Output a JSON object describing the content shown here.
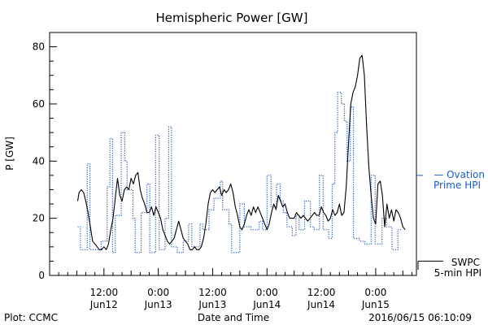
{
  "chart_data": {
    "type": "line",
    "title": "Hemispheric Power [GW]",
    "ylabel": "P [GW]",
    "xlabel": "Date and Time",
    "ylim": [
      0,
      85
    ],
    "yticks": [
      0,
      20,
      40,
      60,
      80
    ],
    "xlim": [
      0,
      81
    ],
    "x_unit": "hours since 2016-06-11 00:00 UT",
    "xticks": [
      {
        "x": 12,
        "top": "12:00",
        "bottom": "Jun12"
      },
      {
        "x": 24,
        "top": "0:00",
        "bottom": "Jun13"
      },
      {
        "x": 36,
        "top": "12:00",
        "bottom": "Jun13"
      },
      {
        "x": 48,
        "top": "0:00",
        "bottom": "Jun14"
      },
      {
        "x": 60,
        "top": "12:00",
        "bottom": "Jun14"
      },
      {
        "x": 72,
        "top": "0:00",
        "bottom": "Jun15"
      }
    ],
    "grid": false,
    "legend_position": "right",
    "footer_left": "Plot: CCMC",
    "footer_right": "2016/06/15 06:10:09",
    "series": [
      {
        "name": "SWPC 5-min HPI",
        "legend_lines": [
          "SWPC",
          "5-min HPI"
        ],
        "color": "#000000",
        "style": "solid",
        "points": [
          [
            6.2,
            26
          ],
          [
            6.5,
            29
          ],
          [
            7,
            30
          ],
          [
            7.5,
            29
          ],
          [
            8,
            26
          ],
          [
            8.5,
            22
          ],
          [
            9,
            17
          ],
          [
            9.5,
            12
          ],
          [
            10,
            11
          ],
          [
            10.5,
            10
          ],
          [
            11,
            9
          ],
          [
            11.5,
            9
          ],
          [
            12,
            10
          ],
          [
            12.5,
            9
          ],
          [
            13,
            11
          ],
          [
            13.5,
            16
          ],
          [
            14,
            20
          ],
          [
            14.5,
            27
          ],
          [
            15,
            34
          ],
          [
            15.5,
            28
          ],
          [
            16,
            26
          ],
          [
            16.5,
            30
          ],
          [
            17,
            31
          ],
          [
            17.5,
            30
          ],
          [
            18,
            34
          ],
          [
            18.5,
            32
          ],
          [
            19,
            35
          ],
          [
            19.5,
            36
          ],
          [
            20,
            30
          ],
          [
            20.5,
            27
          ],
          [
            21,
            25
          ],
          [
            21.5,
            22
          ],
          [
            22,
            22
          ],
          [
            22.5,
            24
          ],
          [
            23,
            21
          ],
          [
            23.5,
            24
          ],
          [
            24,
            22
          ],
          [
            24.5,
            20
          ],
          [
            25,
            16
          ],
          [
            25.5,
            14
          ],
          [
            26,
            12
          ],
          [
            26.5,
            11
          ],
          [
            27,
            12
          ],
          [
            27.5,
            13
          ],
          [
            28,
            16
          ],
          [
            28.5,
            19
          ],
          [
            29,
            16
          ],
          [
            29.5,
            13
          ],
          [
            30,
            12
          ],
          [
            30.5,
            11
          ],
          [
            31,
            9
          ],
          [
            31.5,
            9
          ],
          [
            32,
            10
          ],
          [
            32.5,
            9
          ],
          [
            33,
            9
          ],
          [
            33.5,
            10
          ],
          [
            34,
            13
          ],
          [
            34.5,
            18
          ],
          [
            35,
            25
          ],
          [
            35.5,
            29
          ],
          [
            36,
            30
          ],
          [
            36.5,
            29
          ],
          [
            37,
            30
          ],
          [
            37.5,
            31
          ],
          [
            38,
            28
          ],
          [
            38.5,
            30
          ],
          [
            39,
            29
          ],
          [
            39.5,
            30
          ],
          [
            40,
            32
          ],
          [
            40.5,
            29
          ],
          [
            41,
            24
          ],
          [
            41.5,
            21
          ],
          [
            42,
            17
          ],
          [
            42.5,
            16
          ],
          [
            43,
            18
          ],
          [
            43.5,
            21
          ],
          [
            44,
            23
          ],
          [
            44.5,
            21
          ],
          [
            45,
            24
          ],
          [
            45.5,
            22
          ],
          [
            46,
            24
          ],
          [
            46.5,
            22
          ],
          [
            47,
            20
          ],
          [
            47.5,
            18
          ],
          [
            48,
            16
          ],
          [
            48.5,
            18
          ],
          [
            49,
            22
          ],
          [
            49.5,
            25
          ],
          [
            50,
            23
          ],
          [
            50.5,
            28
          ],
          [
            51,
            26
          ],
          [
            51.5,
            24
          ],
          [
            52,
            25
          ],
          [
            52.5,
            22
          ],
          [
            53,
            20
          ],
          [
            53.5,
            20
          ],
          [
            54,
            20
          ],
          [
            54.5,
            22
          ],
          [
            55,
            21
          ],
          [
            55.5,
            20
          ],
          [
            56,
            21
          ],
          [
            56.5,
            20
          ],
          [
            57,
            19
          ],
          [
            57.5,
            20
          ],
          [
            58,
            21
          ],
          [
            58.5,
            22
          ],
          [
            59,
            21
          ],
          [
            59.5,
            21
          ],
          [
            60,
            24
          ],
          [
            60.5,
            22
          ],
          [
            61,
            21
          ],
          [
            61.5,
            19
          ],
          [
            62,
            20
          ],
          [
            62.5,
            23
          ],
          [
            63,
            21
          ],
          [
            63.5,
            22
          ],
          [
            64,
            25
          ],
          [
            64.5,
            21
          ],
          [
            65,
            22
          ],
          [
            65.5,
            31
          ],
          [
            66,
            46
          ],
          [
            66.5,
            60
          ],
          [
            67,
            64
          ],
          [
            67.5,
            66
          ],
          [
            68,
            70
          ],
          [
            68.5,
            76
          ],
          [
            69,
            77
          ],
          [
            69.5,
            70
          ],
          [
            70,
            52
          ],
          [
            70.5,
            38
          ],
          [
            71,
            28
          ],
          [
            71.5,
            20
          ],
          [
            72,
            18
          ],
          [
            72.5,
            32
          ],
          [
            73,
            33
          ],
          [
            73.5,
            28
          ],
          [
            74,
            17
          ],
          [
            74.5,
            25
          ],
          [
            75,
            20
          ],
          [
            75.5,
            23
          ],
          [
            76,
            19
          ],
          [
            76.5,
            23
          ],
          [
            77,
            22
          ],
          [
            77.5,
            20
          ],
          [
            78,
            17
          ],
          [
            78.5,
            16
          ]
        ]
      },
      {
        "name": "Ovation Prime HPI",
        "legend_lines": [
          "— Ovation",
          "Prime HPI"
        ],
        "color": "#1e5ac8",
        "style": "dotted",
        "points": [
          [
            6.2,
            17
          ],
          [
            6.8,
            17
          ],
          [
            6.8,
            9
          ],
          [
            8.3,
            9
          ],
          [
            8.3,
            39
          ],
          [
            8.9,
            39
          ],
          [
            8.9,
            9
          ],
          [
            11.4,
            9
          ],
          [
            11.4,
            12
          ],
          [
            12.7,
            12
          ],
          [
            12.7,
            31
          ],
          [
            13.3,
            31
          ],
          [
            13.3,
            48
          ],
          [
            13.9,
            48
          ],
          [
            13.9,
            8
          ],
          [
            14.5,
            8
          ],
          [
            14.5,
            21
          ],
          [
            15.8,
            21
          ],
          [
            15.8,
            50
          ],
          [
            16.6,
            50
          ],
          [
            16.6,
            40
          ],
          [
            17.1,
            40
          ],
          [
            17.1,
            30
          ],
          [
            18.4,
            30
          ],
          [
            18.4,
            20
          ],
          [
            18.9,
            20
          ],
          [
            18.9,
            8
          ],
          [
            20.2,
            8
          ],
          [
            20.2,
            22
          ],
          [
            21.5,
            22
          ],
          [
            21.5,
            32
          ],
          [
            22.1,
            32
          ],
          [
            22.1,
            8
          ],
          [
            23.4,
            8
          ],
          [
            23.4,
            49
          ],
          [
            24.2,
            49
          ],
          [
            24.2,
            9
          ],
          [
            25.5,
            9
          ],
          [
            25.5,
            20
          ],
          [
            26.3,
            20
          ],
          [
            26.3,
            52
          ],
          [
            26.9,
            52
          ],
          [
            26.9,
            10
          ],
          [
            28.2,
            10
          ],
          [
            28.2,
            8
          ],
          [
            29.5,
            8
          ],
          [
            29.5,
            12
          ],
          [
            30.7,
            12
          ],
          [
            30.7,
            18
          ],
          [
            31.4,
            18
          ],
          [
            31.4,
            10
          ],
          [
            33.2,
            10
          ],
          [
            33.2,
            18
          ],
          [
            33.8,
            18
          ],
          [
            33.8,
            16
          ],
          [
            35.2,
            16
          ],
          [
            35.2,
            23
          ],
          [
            36.3,
            23
          ],
          [
            36.3,
            27
          ],
          [
            37.7,
            27
          ],
          [
            37.7,
            33
          ],
          [
            38.2,
            33
          ],
          [
            38.2,
            23
          ],
          [
            39.6,
            23
          ],
          [
            39.6,
            18
          ],
          [
            40.2,
            18
          ],
          [
            40.2,
            8
          ],
          [
            42.0,
            8
          ],
          [
            42.0,
            25
          ],
          [
            43.0,
            25
          ],
          [
            43.0,
            17
          ],
          [
            44.5,
            17
          ],
          [
            44.5,
            16
          ],
          [
            46.3,
            16
          ],
          [
            46.3,
            19
          ],
          [
            47.0,
            19
          ],
          [
            47.0,
            16
          ],
          [
            48.0,
            16
          ],
          [
            48.0,
            35
          ],
          [
            48.9,
            35
          ],
          [
            48.9,
            24
          ],
          [
            50.1,
            24
          ],
          [
            50.1,
            32
          ],
          [
            50.9,
            32
          ],
          [
            50.9,
            26
          ],
          [
            51.6,
            26
          ],
          [
            51.6,
            22
          ],
          [
            52.4,
            22
          ],
          [
            52.4,
            17
          ],
          [
            53.6,
            17
          ],
          [
            53.6,
            14
          ],
          [
            54.4,
            14
          ],
          [
            54.4,
            21
          ],
          [
            55.1,
            21
          ],
          [
            55.1,
            16
          ],
          [
            56.3,
            16
          ],
          [
            56.3,
            26
          ],
          [
            57.6,
            26
          ],
          [
            57.6,
            17
          ],
          [
            58.4,
            17
          ],
          [
            58.4,
            16
          ],
          [
            59.6,
            16
          ],
          [
            59.6,
            35
          ],
          [
            60.4,
            35
          ],
          [
            60.4,
            16
          ],
          [
            61.6,
            16
          ],
          [
            61.6,
            13
          ],
          [
            62.4,
            13
          ],
          [
            62.4,
            32
          ],
          [
            63.0,
            32
          ],
          [
            63.0,
            50
          ],
          [
            63.6,
            50
          ],
          [
            63.6,
            64
          ],
          [
            64.4,
            64
          ],
          [
            64.4,
            60
          ],
          [
            65.1,
            60
          ],
          [
            65.1,
            54
          ],
          [
            65.7,
            54
          ],
          [
            65.7,
            40
          ],
          [
            66.4,
            40
          ],
          [
            66.4,
            59
          ],
          [
            67.1,
            59
          ],
          [
            67.1,
            13
          ],
          [
            68.4,
            13
          ],
          [
            68.4,
            12
          ],
          [
            69.6,
            12
          ],
          [
            69.6,
            11
          ],
          [
            71.0,
            11
          ],
          [
            71.0,
            35
          ],
          [
            71.9,
            35
          ],
          [
            71.9,
            11
          ],
          [
            73.4,
            11
          ],
          [
            73.4,
            20
          ],
          [
            74.4,
            20
          ],
          [
            74.4,
            17
          ],
          [
            75.6,
            17
          ],
          [
            75.6,
            9
          ],
          [
            76.9,
            9
          ],
          [
            76.9,
            16
          ],
          [
            77.6,
            16
          ]
        ]
      }
    ]
  }
}
